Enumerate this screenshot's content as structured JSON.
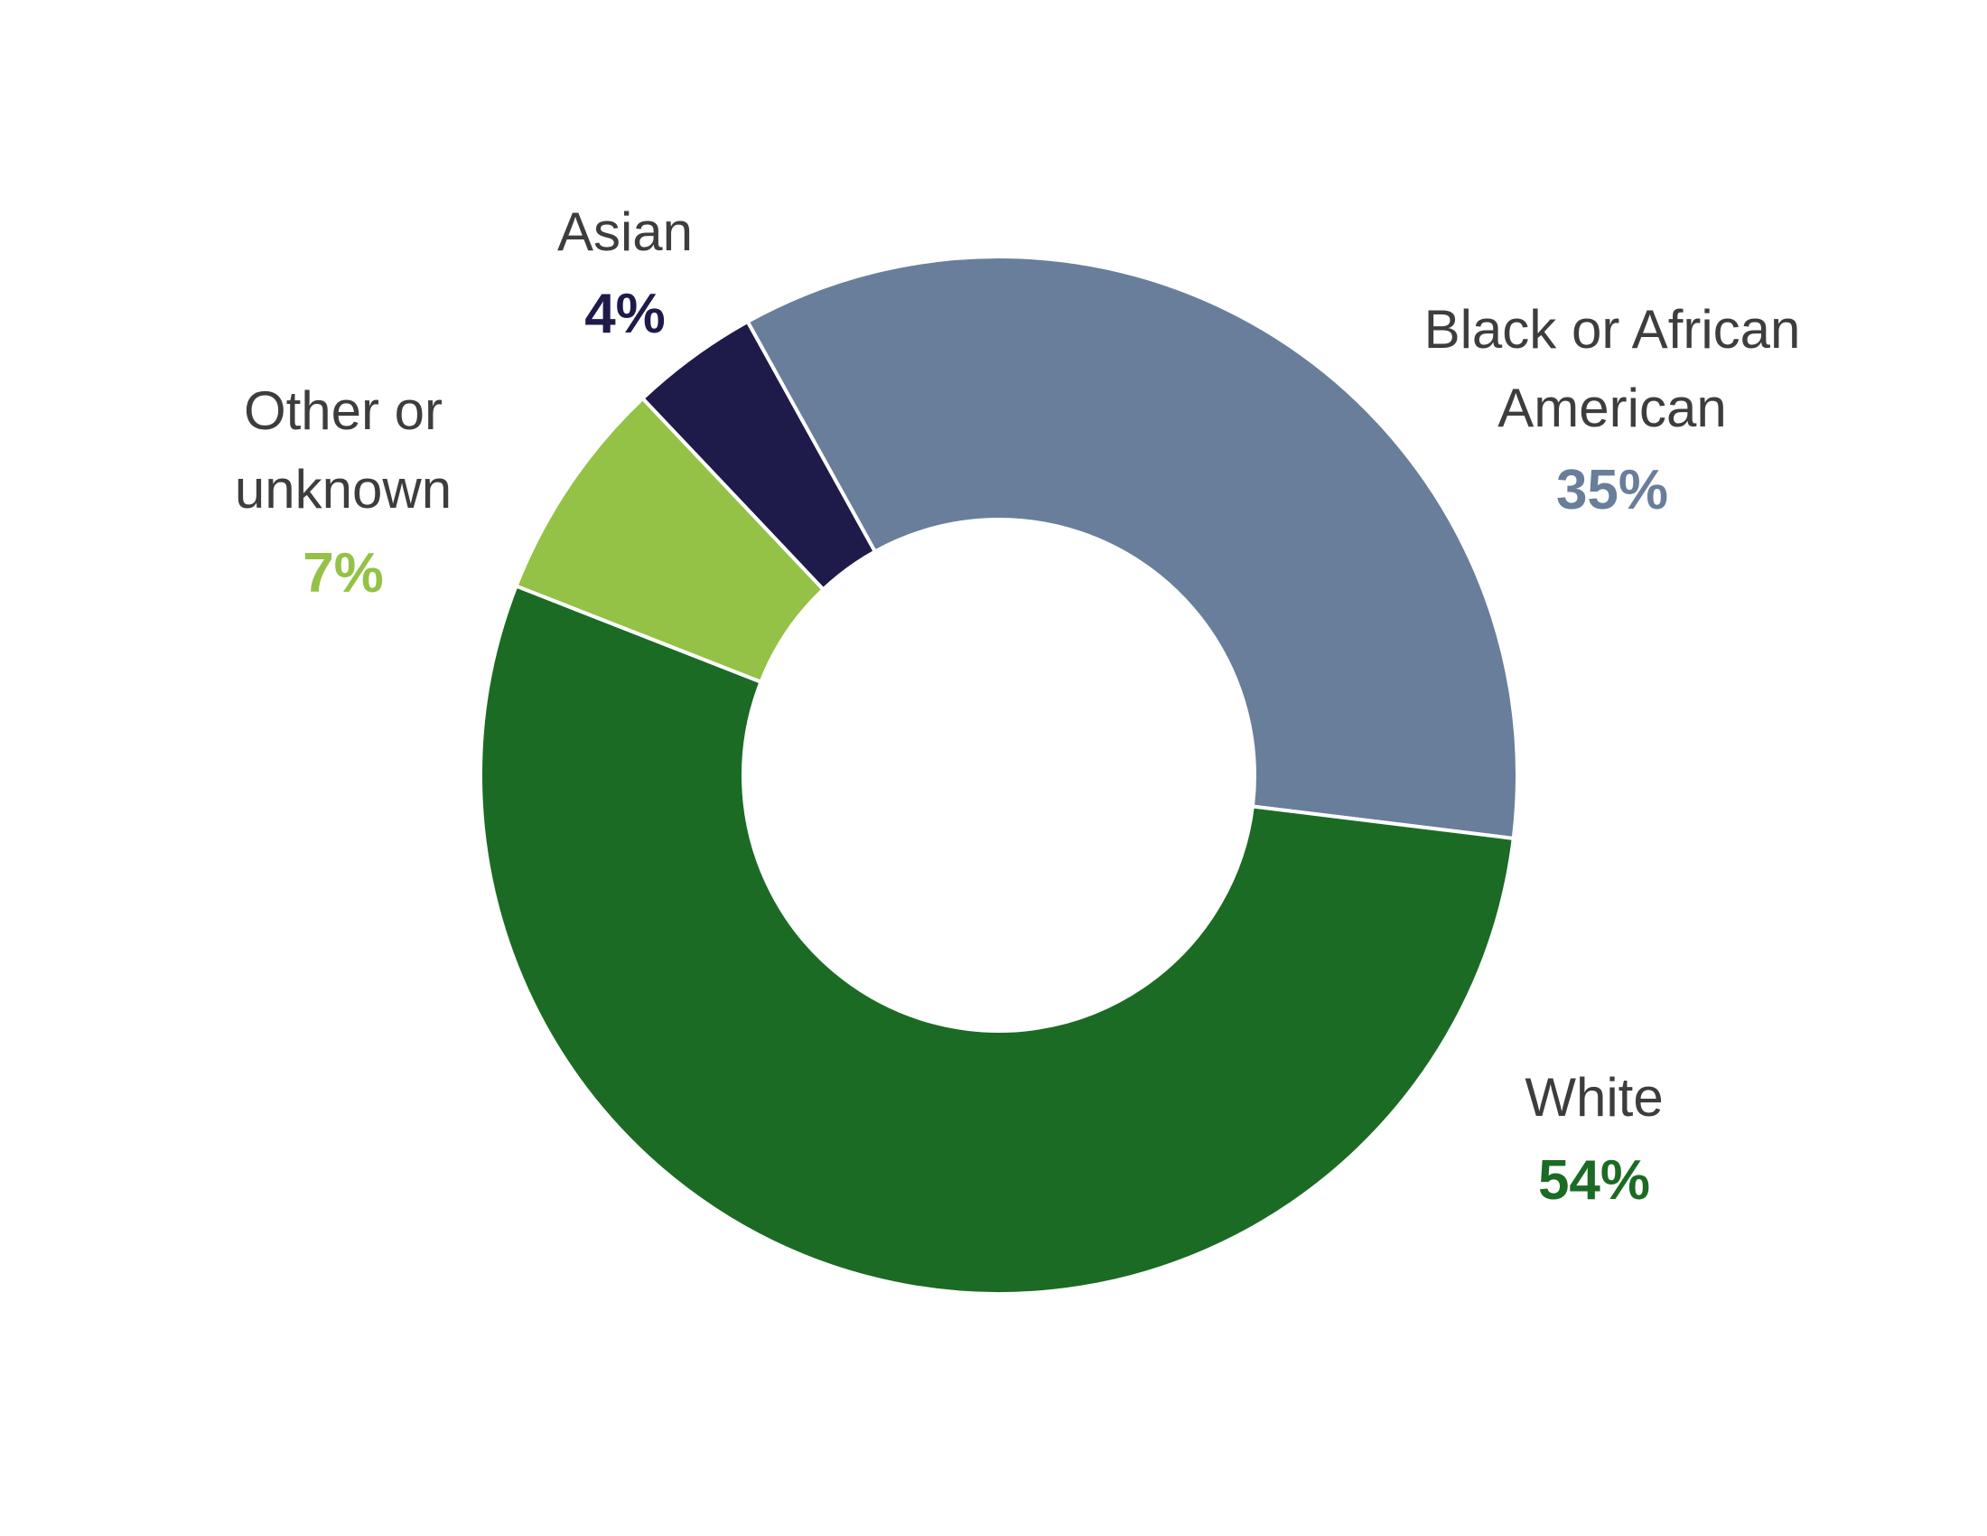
{
  "chart_data": {
    "type": "pie",
    "variant": "donut",
    "title": "",
    "slices": [
      {
        "label_lines": [
          "Black or African",
          "American"
        ],
        "value_text": "35%",
        "value": 35,
        "color": "#687e9b"
      },
      {
        "label_lines": [
          "White"
        ],
        "value_text": "54%",
        "value": 54,
        "color": "#1b6b24"
      },
      {
        "label_lines": [
          "Other or",
          "unknown"
        ],
        "value_text": "7%",
        "value": 7,
        "color": "#93c246"
      },
      {
        "label_lines": [
          "Asian"
        ],
        "value_text": "4%",
        "value": 4,
        "color": "#1e1b4b"
      }
    ]
  }
}
